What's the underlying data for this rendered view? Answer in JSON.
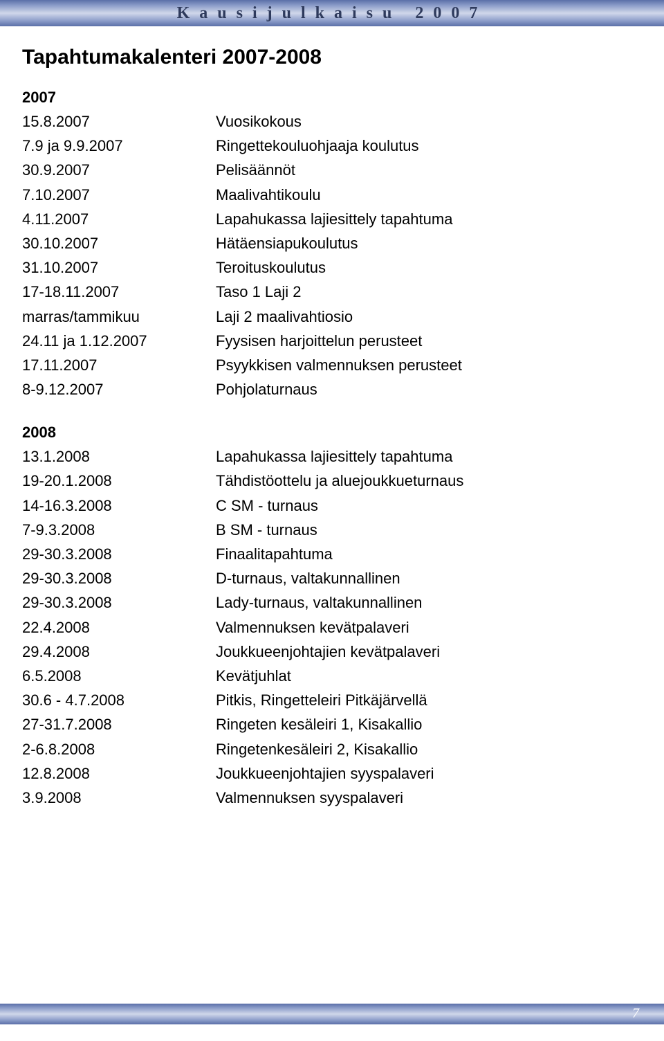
{
  "header": {
    "title": "Kausijulkaisu 2007"
  },
  "main_heading": "Tapahtumakalenteri 2007-2008",
  "sections": [
    {
      "year": "2007",
      "events": [
        {
          "date": "15.8.2007",
          "desc": "Vuosikokous"
        },
        {
          "date": "7.9 ja 9.9.2007",
          "desc": "Ringettekouluohjaaja koulutus"
        },
        {
          "date": "30.9.2007",
          "desc": "Pelisäännöt"
        },
        {
          "date": "7.10.2007",
          "desc": "Maalivahtikoulu"
        },
        {
          "date": "4.11.2007",
          "desc": "Lapahukassa lajiesittely tapahtuma"
        },
        {
          "date": "30.10.2007",
          "desc": "Hätäensiapukoulutus"
        },
        {
          "date": "31.10.2007",
          "desc": "Teroituskoulutus"
        },
        {
          "date": "17-18.11.2007",
          "desc": "Taso 1 Laji 2"
        },
        {
          "date": "marras/tammikuu",
          "desc": "Laji 2 maalivahtiosio"
        },
        {
          "date": "24.11 ja 1.12.2007",
          "desc": "Fyysisen harjoittelun perusteet"
        },
        {
          "date": "17.11.2007",
          "desc": "Psyykkisen valmennuksen perusteet"
        },
        {
          "date": " 8-9.12.2007",
          "desc": "Pohjolaturnaus"
        }
      ]
    },
    {
      "year": "2008",
      "events": [
        {
          "date": "13.1.2008",
          "desc": "Lapahukassa lajiesittely tapahtuma"
        },
        {
          "date": "19-20.1.2008",
          "desc": "Tähdistöottelu ja aluejoukkueturnaus"
        },
        {
          "date": "14-16.3.2008",
          "desc": "C SM - turnaus"
        },
        {
          "date": "7-9.3.2008",
          "desc": "B SM - turnaus"
        },
        {
          "date": "29-30.3.2008",
          "desc": "Finaalitapahtuma"
        },
        {
          "date": "29-30.3.2008",
          "desc": "D-turnaus, valtakunnallinen"
        },
        {
          "date": "29-30.3.2008",
          "desc": "Lady-turnaus, valtakunnallinen"
        },
        {
          "date": "22.4.2008",
          "desc": "Valmennuksen kevätpalaveri"
        },
        {
          "date": "29.4.2008",
          "desc": "Joukkueenjohtajien kevätpalaveri"
        },
        {
          "date": "6.5.2008",
          "desc": "Kevätjuhlat"
        },
        {
          "date": "30.6 - 4.7.2008",
          "desc": "Pitkis, Ringetteleiri Pitkäjärvellä"
        },
        {
          "date": "27-31.7.2008",
          "desc": "Ringeten kesäleiri 1, Kisakallio"
        },
        {
          "date": "2-6.8.2008",
          "desc": "Ringetenkesäleiri 2, Kisakallio"
        },
        {
          "date": "12.8.2008",
          "desc": "Joukkueenjohtajien syyspalaveri"
        },
        {
          "date": "3.9.2008",
          "desc": "Valmennuksen syyspalaveri"
        }
      ]
    }
  ],
  "page_number": "7",
  "colors": {
    "gradient_dark": "#5b6fa8",
    "gradient_mid": "#8a9bc8",
    "gradient_light": "#d0d7ea",
    "text": "#000000",
    "header_text": "#2e3a5c",
    "page_num": "#ffffff",
    "background": "#ffffff"
  },
  "typography": {
    "body_fontsize": 22,
    "heading_fontsize": 30,
    "year_fontsize": 22,
    "header_fontsize": 24,
    "header_letter_spacing": 14
  }
}
